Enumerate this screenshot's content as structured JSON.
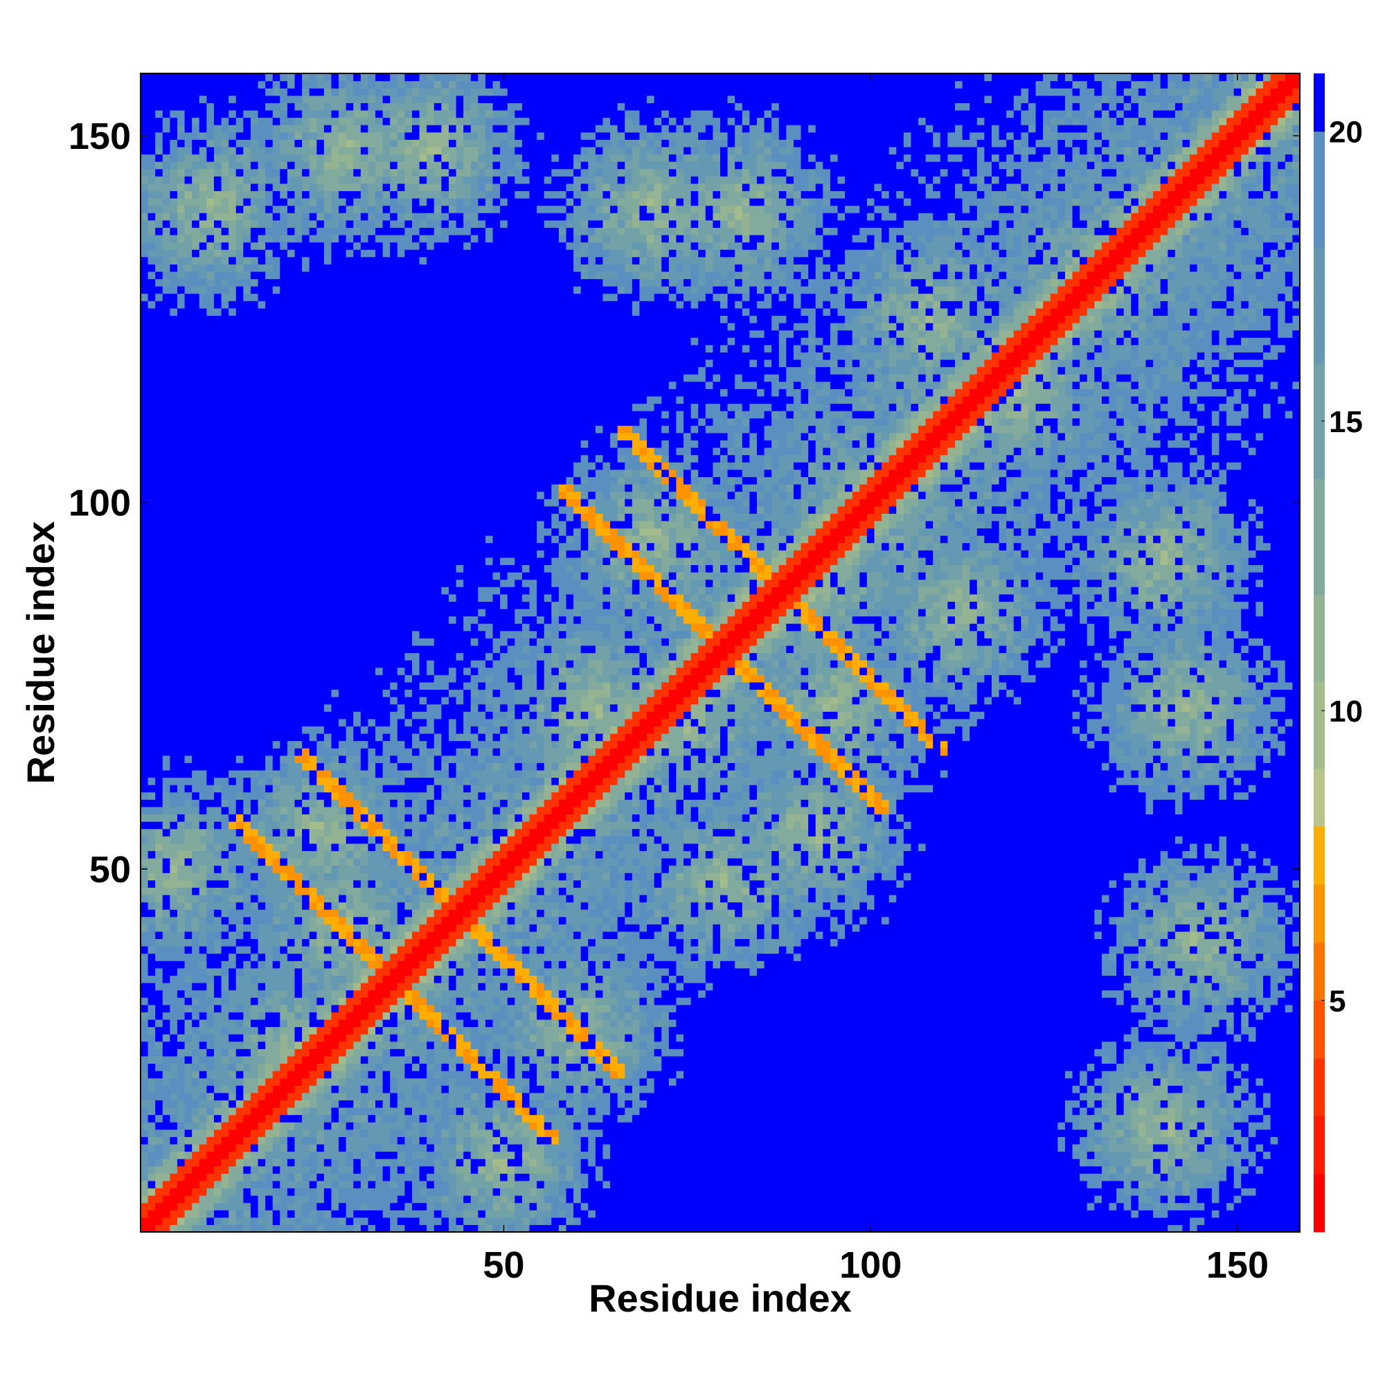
{
  "chart_data": {
    "type": "heatmap",
    "title": "",
    "xlabel": "Residue index",
    "ylabel": "Residue index",
    "n_residues": 158,
    "xlim": [
      1,
      158
    ],
    "ylim": [
      1,
      158
    ],
    "x_ticks": [
      50,
      100,
      150
    ],
    "y_ticks": [
      50,
      100,
      150
    ],
    "x_tick_labels": [
      "50",
      "100",
      "150"
    ],
    "y_tick_labels": [
      "50",
      "100",
      "150"
    ],
    "colorbar": {
      "range": [
        1,
        21
      ],
      "ticks": [
        5,
        10,
        15,
        20
      ],
      "tick_labels": [
        "5",
        "10",
        "15",
        "20"
      ],
      "colors": [
        "#ff0000",
        "#ff1a00",
        "#ff3300",
        "#ff5200",
        "#ff7300",
        "#ff9200",
        "#ffad00",
        "#b9c48a",
        "#a4bc8c",
        "#93b393",
        "#82aa9d",
        "#72a2a8",
        "#6599b3",
        "#5a8fbf",
        "#0000ff"
      ],
      "boundaries": [
        1,
        2,
        3,
        4,
        5,
        6,
        7,
        8,
        9,
        10.5,
        12,
        14,
        16,
        18,
        20,
        21
      ]
    },
    "cell_value_map": {
      "diagonal_band": "1-4",
      "helix_contacts": "5-8",
      "near_contacts": "9-14",
      "far_contacts": "15-19",
      "no_contact": ">=20"
    },
    "grid": false
  }
}
